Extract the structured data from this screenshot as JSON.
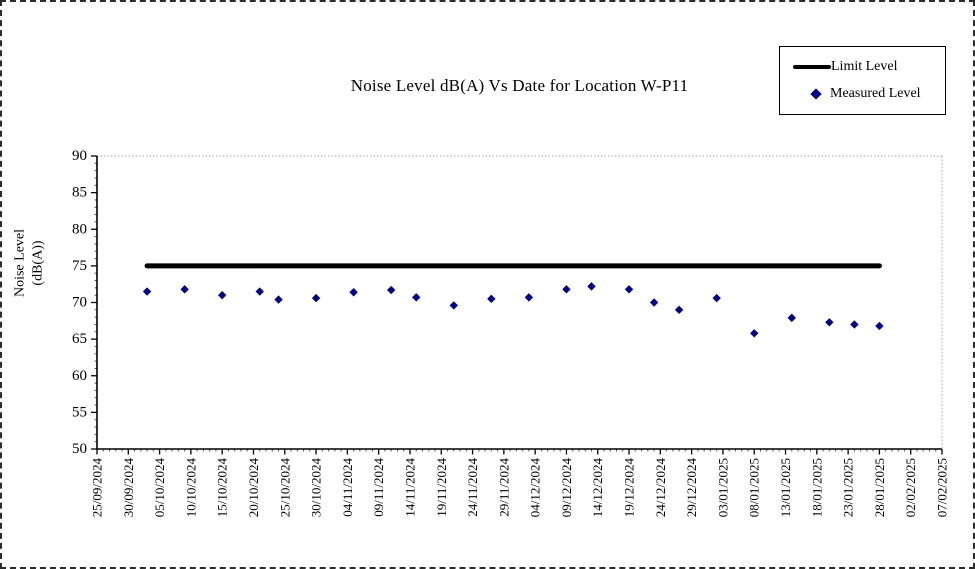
{
  "chart_data": {
    "type": "scatter",
    "title": "Noise Level dB(A) Vs Date for Location W-P11",
    "ylabel_lines": [
      "Noise Level",
      "(dB(A))"
    ],
    "ylim": [
      50,
      90
    ],
    "y_tick_labels": [
      50,
      55,
      60,
      65,
      70,
      75,
      80,
      85,
      90
    ],
    "y_minor_tick_step": 1,
    "x_axis": {
      "tick_labels": [
        "25/09/2024",
        "30/09/2024",
        "05/10/2024",
        "10/10/2024",
        "15/10/2024",
        "20/10/2024",
        "25/10/2024",
        "30/10/2024",
        "04/11/2024",
        "09/11/2024",
        "14/11/2024",
        "19/11/2024",
        "24/11/2024",
        "29/11/2024",
        "04/12/2024",
        "09/12/2024",
        "14/12/2024",
        "19/12/2024",
        "24/12/2024",
        "29/12/2024",
        "03/01/2025",
        "08/01/2025",
        "13/01/2025",
        "18/01/2025",
        "23/01/2025",
        "28/01/2025",
        "02/02/2025",
        "07/02/2025"
      ],
      "tick_interval_days": 5,
      "range_days": [
        0,
        135
      ],
      "x_unit": "days after first tick label"
    },
    "legend_position": "top-right",
    "series": [
      {
        "name": "Limit Level",
        "type": "line",
        "color": "#000000",
        "stroke_width": 5,
        "points": [
          {
            "day": 8,
            "value": 75
          },
          {
            "day": 125,
            "value": 75
          }
        ]
      },
      {
        "name": "Measured Level",
        "type": "scatter",
        "marker": "diamond",
        "color": "#000080",
        "points": [
          {
            "day": 8,
            "value": 71.5
          },
          {
            "day": 14,
            "value": 71.8
          },
          {
            "day": 20,
            "value": 71.0
          },
          {
            "day": 26,
            "value": 71.5
          },
          {
            "day": 29,
            "value": 70.4
          },
          {
            "day": 35,
            "value": 70.6
          },
          {
            "day": 41,
            "value": 71.4
          },
          {
            "day": 47,
            "value": 71.7
          },
          {
            "day": 51,
            "value": 70.7
          },
          {
            "day": 57,
            "value": 69.6
          },
          {
            "day": 63,
            "value": 70.5
          },
          {
            "day": 69,
            "value": 70.7
          },
          {
            "day": 75,
            "value": 71.8
          },
          {
            "day": 79,
            "value": 72.2
          },
          {
            "day": 85,
            "value": 71.8
          },
          {
            "day": 89,
            "value": 70.0
          },
          {
            "day": 93,
            "value": 69.0
          },
          {
            "day": 99,
            "value": 70.6
          },
          {
            "day": 105,
            "value": 65.8
          },
          {
            "day": 111,
            "value": 67.9
          },
          {
            "day": 117,
            "value": 67.3
          },
          {
            "day": 121,
            "value": 67.0
          },
          {
            "day": 125,
            "value": 66.8
          }
        ]
      }
    ]
  }
}
